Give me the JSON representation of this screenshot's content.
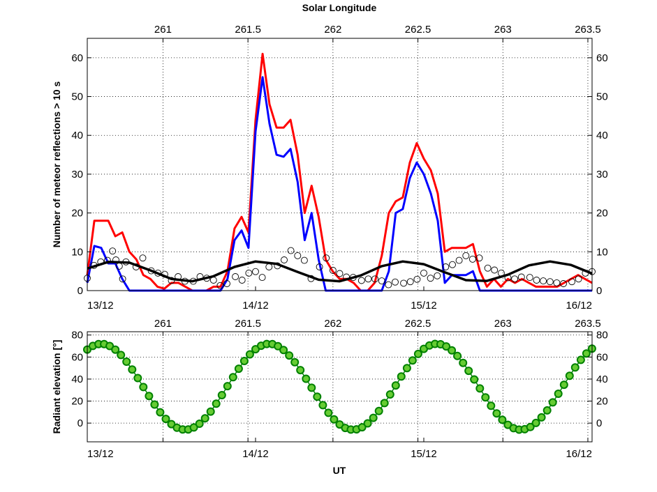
{
  "chart_data": [
    {
      "type": "line",
      "title": "Solar Longitude",
      "xlabel": "",
      "ylabel": "Number of meteor reflections > 10 s",
      "x_unit": "days since 13/12 00:00 UT",
      "xlim": [
        0,
        3
      ],
      "ylim": [
        0,
        65
      ],
      "yticks": [
        0,
        10,
        20,
        30,
        40,
        50,
        60
      ],
      "x_ticks": [
        {
          "x": 0,
          "label": "13/12"
        },
        {
          "x": 1,
          "label": "14/12"
        },
        {
          "x": 2,
          "label": "15/12"
        },
        {
          "x": 3,
          "label": "16/12"
        }
      ],
      "top_ticks": [
        {
          "x": 0.45,
          "label": "261"
        },
        {
          "x": 0.955,
          "label": "261.5"
        },
        {
          "x": 1.46,
          "label": "262"
        },
        {
          "x": 1.965,
          "label": "262.5"
        },
        {
          "x": 2.47,
          "label": "263"
        },
        {
          "x": 2.975,
          "label": "263.5"
        }
      ],
      "grid": true,
      "series": [
        {
          "name": "red",
          "color": "#ff0000",
          "x": [
            0,
            0.042,
            0.083,
            0.125,
            0.167,
            0.208,
            0.25,
            0.292,
            0.333,
            0.375,
            0.417,
            0.458,
            0.5,
            0.542,
            0.583,
            0.625,
            0.667,
            0.708,
            0.75,
            0.792,
            0.833,
            0.875,
            0.917,
            0.958,
            1,
            1.042,
            1.083,
            1.125,
            1.167,
            1.208,
            1.25,
            1.292,
            1.333,
            1.375,
            1.417,
            1.458,
            1.5,
            1.542,
            1.583,
            1.625,
            1.667,
            1.708,
            1.75,
            1.792,
            1.833,
            1.875,
            1.917,
            1.958,
            2,
            2.042,
            2.083,
            2.125,
            2.167,
            2.208,
            2.25,
            2.292,
            2.333,
            2.375,
            2.417,
            2.458,
            2.5,
            2.542,
            2.583,
            2.625,
            2.667,
            2.708,
            2.75,
            2.792,
            2.833,
            2.875,
            2.917,
            2.958,
            3
          ],
          "y": [
            4,
            18,
            18,
            18,
            14,
            15,
            10,
            8,
            4,
            3,
            1,
            0.5,
            2,
            2,
            1,
            0,
            0,
            0,
            1,
            1,
            5,
            16,
            19,
            15,
            44,
            61,
            48,
            42,
            42,
            44,
            35,
            20,
            27,
            19,
            8,
            5,
            3,
            3,
            2,
            0,
            0,
            2,
            9,
            20,
            23,
            24,
            33,
            38,
            34,
            31,
            25,
            10,
            11,
            11,
            11,
            12,
            5,
            1,
            3,
            1,
            3,
            2,
            3,
            2,
            1,
            1,
            1,
            1,
            2,
            3,
            4,
            3,
            2
          ]
        },
        {
          "name": "blue",
          "color": "#0000ff",
          "x": [
            0,
            0.042,
            0.083,
            0.125,
            0.167,
            0.208,
            0.25,
            0.292,
            0.333,
            0.375,
            0.417,
            0.458,
            0.5,
            0.542,
            0.583,
            0.625,
            0.667,
            0.708,
            0.75,
            0.792,
            0.833,
            0.875,
            0.917,
            0.958,
            1,
            1.042,
            1.083,
            1.125,
            1.167,
            1.208,
            1.25,
            1.292,
            1.333,
            1.375,
            1.417,
            1.458,
            1.5,
            1.542,
            1.583,
            1.625,
            1.667,
            1.708,
            1.75,
            1.792,
            1.833,
            1.875,
            1.917,
            1.958,
            2,
            2.042,
            2.083,
            2.125,
            2.167,
            2.208,
            2.25,
            2.292,
            2.333,
            2.375,
            2.417,
            2.458,
            2.5,
            2.542,
            2.583,
            2.625,
            2.667,
            2.708,
            2.75,
            2.792,
            2.833,
            2.875,
            2.917,
            2.958,
            3
          ],
          "y": [
            2,
            11.5,
            11,
            7,
            7,
            3,
            0,
            0,
            0,
            0,
            0,
            0,
            0,
            0,
            0,
            0,
            0,
            0,
            0,
            0,
            3,
            13,
            15.5,
            11,
            41,
            55,
            43,
            35,
            34.5,
            36.5,
            28,
            13,
            20,
            8,
            0,
            0,
            0,
            0,
            0,
            0,
            0,
            0,
            0,
            5,
            20,
            21,
            29,
            33,
            30,
            25,
            18,
            2,
            4,
            4,
            4,
            5,
            0,
            0,
            0,
            0,
            0,
            0,
            0,
            0,
            0,
            0,
            0,
            0,
            0,
            0,
            0,
            0,
            0
          ]
        },
        {
          "name": "black",
          "color": "#000000",
          "x": [
            0,
            0.125,
            0.25,
            0.375,
            0.5,
            0.625,
            0.75,
            0.875,
            1,
            1.125,
            1.25,
            1.375,
            1.5,
            1.625,
            1.75,
            1.875,
            2,
            2.125,
            2.25,
            2.375,
            2.5,
            2.625,
            2.75,
            2.875,
            3
          ],
          "y": [
            5.7,
            7.4,
            7.2,
            5.2,
            3.0,
            2.4,
            3.7,
            6.1,
            7.5,
            6.9,
            4.8,
            2.8,
            2.4,
            3.9,
            6.3,
            7.5,
            6.8,
            4.7,
            2.7,
            2.5,
            4.1,
            6.5,
            7.5,
            6.6,
            4.4
          ]
        }
      ],
      "scatter_series": {
        "name": "open circles",
        "color": "#000000",
        "x": [
          0,
          0.04,
          0.08,
          0.12,
          0.15,
          0.17,
          0.19,
          0.21,
          0.23,
          0.29,
          0.33,
          0.38,
          0.42,
          0.46,
          0.5,
          0.54,
          0.58,
          0.63,
          0.67,
          0.71,
          0.75,
          0.79,
          0.83,
          0.88,
          0.92,
          0.96,
          1,
          1.04,
          1.08,
          1.13,
          1.17,
          1.21,
          1.25,
          1.29,
          1.33,
          1.38,
          1.42,
          1.46,
          1.5,
          1.54,
          1.58,
          1.63,
          1.67,
          1.71,
          1.75,
          1.79,
          1.83,
          1.88,
          1.92,
          1.96,
          2,
          2.04,
          2.08,
          2.13,
          2.17,
          2.21,
          2.25,
          2.29,
          2.33,
          2.38,
          2.42,
          2.46,
          2.5,
          2.54,
          2.58,
          2.63,
          2.67,
          2.71,
          2.75,
          2.79,
          2.83,
          2.88,
          2.92,
          2.96,
          3
        ],
        "y": [
          3.2,
          6.5,
          7.4,
          7.8,
          10.2,
          7.9,
          6.3,
          3,
          7.4,
          6.1,
          8.4,
          5.1,
          4.5,
          4.2,
          2.6,
          3.6,
          2.4,
          2.4,
          3.6,
          3.2,
          2.7,
          1.3,
          1.8,
          3.6,
          2.7,
          4.5,
          4.9,
          3.4,
          6.1,
          6.4,
          7.9,
          10.3,
          9,
          7.8,
          3.1,
          6.1,
          8.4,
          5.2,
          4.4,
          3.5,
          3.4,
          2.6,
          3,
          3,
          2.5,
          1.5,
          2.2,
          1.9,
          2.3,
          2.9,
          4.5,
          3.2,
          3.8,
          6.1,
          6.7,
          7.8,
          9,
          8.1,
          8.4,
          5.8,
          5.3,
          4.5,
          3.3,
          3,
          3.5,
          3.4,
          2.7,
          2.5,
          2.3,
          2,
          1.8,
          2.3,
          3,
          4.5,
          4.9
        ]
      }
    },
    {
      "type": "scatter",
      "title": "",
      "xlabel": "UT",
      "ylabel": "Radiant elevation [°]",
      "xlim": [
        0,
        3
      ],
      "ylim": [
        -17,
        83
      ],
      "yticks": [
        0,
        20,
        40,
        60,
        80
      ],
      "x_ticks": [
        {
          "x": 0,
          "label": "13/12"
        },
        {
          "x": 1,
          "label": "14/12"
        },
        {
          "x": 2,
          "label": "15/12"
        },
        {
          "x": 3,
          "label": "16/12"
        }
      ],
      "top_ticks": [
        {
          "x": 0.45,
          "label": "261"
        },
        {
          "x": 0.955,
          "label": "261.5"
        },
        {
          "x": 1.46,
          "label": "262"
        },
        {
          "x": 1.965,
          "label": "262.5"
        },
        {
          "x": 2.47,
          "label": "263"
        },
        {
          "x": 2.975,
          "label": "263.5"
        }
      ],
      "grid": true,
      "series": [
        {
          "name": "radiant elevation",
          "color": "#008000",
          "marker_fill": "#66cc33",
          "peak": 72,
          "trough": -6,
          "peak_times": [
            0.083,
            1.08,
            2.08
          ],
          "period_days": 0.9973,
          "sample_step_days": 0.03333,
          "count": 91
        }
      ]
    }
  ]
}
